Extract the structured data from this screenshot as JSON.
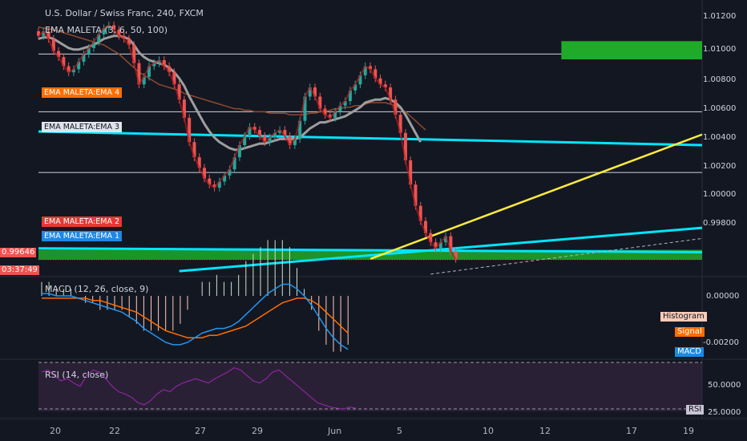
{
  "title": "U.S. Dollar / Swiss Franc, 240, FXCM",
  "ema_indicator": "EMA MALETA (3, 6, 50, 100)",
  "macd_indicator": "MACD (12, 26, close, 9)",
  "rsi_indicator": "RSI (14, close)",
  "ema_labels": [
    "EMA MALETA:EMA 4",
    "EMA MALETA:EMA 3",
    "EMA MALETA:EMA 2",
    "EMA MALETA:EMA 1"
  ],
  "price_tag": "0.99646",
  "countdown_tag": "03:37:49",
  "macd_labels": {
    "histogram": "Histogram",
    "signal": "Signal",
    "macd": "MACD"
  },
  "rsi_tag": "RSI",
  "colors": {
    "background": "#131722",
    "up": "#26a69a",
    "down": "#ef5350",
    "cyan": "#00e5ff",
    "yellow": "#ffeb3b",
    "green_zone": "#1faa2a",
    "macd": "#2196f3",
    "signal": "#ff6d00",
    "rsi": "#9c27b0"
  },
  "chart_data": {
    "type": "line",
    "symbol": "USDCHF",
    "timeframe": "240",
    "y_ticks": [
      "1.01200",
      "1.01000",
      "1.00800",
      "1.00600",
      "1.00400",
      "1.00200",
      "1.00000",
      "0.99800"
    ],
    "ylim": [
      0.9956,
      1.0124
    ],
    "x_ticks": [
      "20",
      "22",
      "27",
      "29",
      "Jun",
      "5",
      "10",
      "12",
      "17",
      "19"
    ],
    "close_series": [
      1.0112,
      1.0115,
      1.011,
      1.0102,
      1.0098,
      1.0092,
      1.0088,
      1.009,
      1.0095,
      1.01,
      1.0104,
      1.0108,
      1.0113,
      1.0117,
      1.0119,
      1.0116,
      1.0112,
      1.011,
      1.0106,
      1.0094,
      1.008,
      1.0085,
      1.0092,
      1.0094,
      1.0096,
      1.0092,
      1.0088,
      1.008,
      1.007,
      1.0058,
      1.0042,
      1.0032,
      1.0025,
      1.0018,
      1.0014,
      1.0012,
      1.0016,
      1.002,
      1.0024,
      1.0032,
      1.004,
      1.0046,
      1.0052,
      1.005,
      1.0046,
      1.0042,
      1.0045,
      1.0048,
      1.005,
      1.0046,
      1.004,
      1.0044,
      1.0056,
      1.0072,
      1.0078,
      1.0072,
      1.0064,
      1.006,
      1.0058,
      1.0062,
      1.0066,
      1.0069,
      1.0076,
      1.008,
      1.0086,
      1.0092,
      1.009,
      1.0084,
      1.008,
      1.0078,
      1.007,
      1.006,
      1.0048,
      1.003,
      1.0014,
      1.0,
      0.999,
      0.9982,
      0.9976,
      0.9972,
      0.9976,
      0.998,
      0.997,
      0.9965
    ],
    "ema_slow": [
      1.0118,
      1.0117,
      1.0117,
      1.0116,
      1.0115,
      1.0114,
      1.0113,
      1.0112,
      1.0111,
      1.011,
      1.0109,
      1.0108,
      1.0107,
      1.0106,
      1.0104,
      1.0102,
      1.01,
      1.0097,
      1.0094,
      1.0091,
      1.0088,
      1.0086,
      1.0084,
      1.0082,
      1.008,
      1.0079,
      1.0078,
      1.0077,
      1.0076,
      1.0074,
      1.0073,
      1.0072,
      1.0071,
      1.007,
      1.0069,
      1.0068,
      1.0067,
      1.0066,
      1.0065,
      1.0064,
      1.0064,
      1.0063,
      1.0063,
      1.0062,
      1.0062,
      1.0062,
      1.0061,
      1.0061,
      1.0061,
      1.0061,
      1.006,
      1.006,
      1.006,
      1.006,
      1.0061,
      1.0061,
      1.0062,
      1.0062,
      1.0063,
      1.0064,
      1.0064,
      1.0065,
      1.0065,
      1.0066,
      1.0066,
      1.0067,
      1.0068,
      1.0068,
      1.0068,
      1.0068,
      1.0067,
      1.0066,
      1.0064,
      1.0062,
      1.0059,
      1.0056,
      1.0053,
      1.005
    ],
    "ema_mid": [
      1.011,
      1.0111,
      1.0111,
      1.011,
      1.0108,
      1.0106,
      1.0104,
      1.0103,
      1.0103,
      1.0104,
      1.0105,
      1.0106,
      1.0108,
      1.011,
      1.0111,
      1.0112,
      1.0112,
      1.0111,
      1.011,
      1.0106,
      1.0101,
      1.0098,
      1.0096,
      1.0095,
      1.0094,
      1.0093,
      1.0091,
      1.0088,
      1.0084,
      1.0079,
      1.0072,
      1.0066,
      1.006,
      1.0054,
      1.0049,
      1.0045,
      1.0042,
      1.004,
      1.0038,
      1.0037,
      1.0037,
      1.0038,
      1.0039,
      1.004,
      1.0041,
      1.0041,
      1.0042,
      1.0043,
      1.0044,
      1.0044,
      1.0044,
      1.0044,
      1.0045,
      1.0048,
      1.0051,
      1.0053,
      1.0055,
      1.0055,
      1.0056,
      1.0057,
      1.0058,
      1.0059,
      1.0061,
      1.0063,
      1.0065,
      1.0068,
      1.0069,
      1.007,
      1.007,
      1.0071,
      1.007,
      1.0068,
      1.0065,
      1.006,
      1.0054,
      1.0048,
      1.0042
    ],
    "horizontal_levels": [
      1.01,
      1.0062,
      1.0022
    ],
    "green_zones": [
      [
        0.99645,
        0.9971
      ],
      [
        1.00965,
        1.01085
      ]
    ],
    "cyan_lines": [
      [
        0,
        1.0049,
        132,
        1.004
      ],
      [
        28,
        0.9957,
        132,
        0.99855
      ],
      [
        0,
        0.9972,
        132,
        0.99695
      ]
    ],
    "yellow_line": [
      66,
      0.9965,
      132,
      1.0047
    ],
    "macd_ticks": [
      "0.00000",
      "-0.00200"
    ],
    "macd_values": [
      0.0001,
      0.0001,
      0.0,
      0.0,
      0.0,
      -0.0001,
      -0.0002,
      -0.0003,
      -0.0004,
      -0.0005,
      -0.0006,
      -0.0007,
      -0.0009,
      -0.0011,
      -0.0014,
      -0.0016,
      -0.0018,
      -0.002,
      -0.0021,
      -0.0021,
      -0.002,
      -0.0018,
      -0.0016,
      -0.0015,
      -0.0014,
      -0.0014,
      -0.0013,
      -0.0011,
      -0.0008,
      -0.0005,
      -0.0002,
      0.0001,
      0.0003,
      0.0005,
      0.0005,
      0.0003,
      0.0,
      -0.0004,
      -0.0009,
      -0.0014,
      -0.0018,
      -0.0021,
      -0.0023
    ],
    "signal_values": [
      -0.0001,
      -0.0001,
      -0.0001,
      -0.0001,
      -0.0001,
      -0.0001,
      -0.0001,
      -0.0002,
      -0.0002,
      -0.0003,
      -0.0004,
      -0.0005,
      -0.0006,
      -0.0007,
      -0.0009,
      -0.0011,
      -0.0013,
      -0.0015,
      -0.0016,
      -0.0017,
      -0.0018,
      -0.0018,
      -0.0018,
      -0.0017,
      -0.0017,
      -0.0016,
      -0.0015,
      -0.0014,
      -0.0013,
      -0.0011,
      -0.0009,
      -0.0007,
      -0.0005,
      -0.0003,
      -0.0002,
      -0.0001,
      -0.0001,
      -0.0002,
      -0.0004,
      -0.0007,
      -0.001,
      -0.0013,
      -0.0016
    ],
    "rsi_ticks": [
      "50.0000",
      "25.0000"
    ],
    "rsi_values": [
      58,
      60,
      55,
      50,
      52,
      48,
      45,
      55,
      60,
      58,
      52,
      45,
      40,
      38,
      35,
      30,
      28,
      32,
      38,
      42,
      40,
      45,
      48,
      50,
      52,
      50,
      48,
      52,
      55,
      58,
      62,
      60,
      55,
      50,
      48,
      52,
      58,
      60,
      55,
      50,
      45,
      40,
      35,
      30,
      28,
      26,
      25,
      24,
      26,
      25
    ]
  }
}
